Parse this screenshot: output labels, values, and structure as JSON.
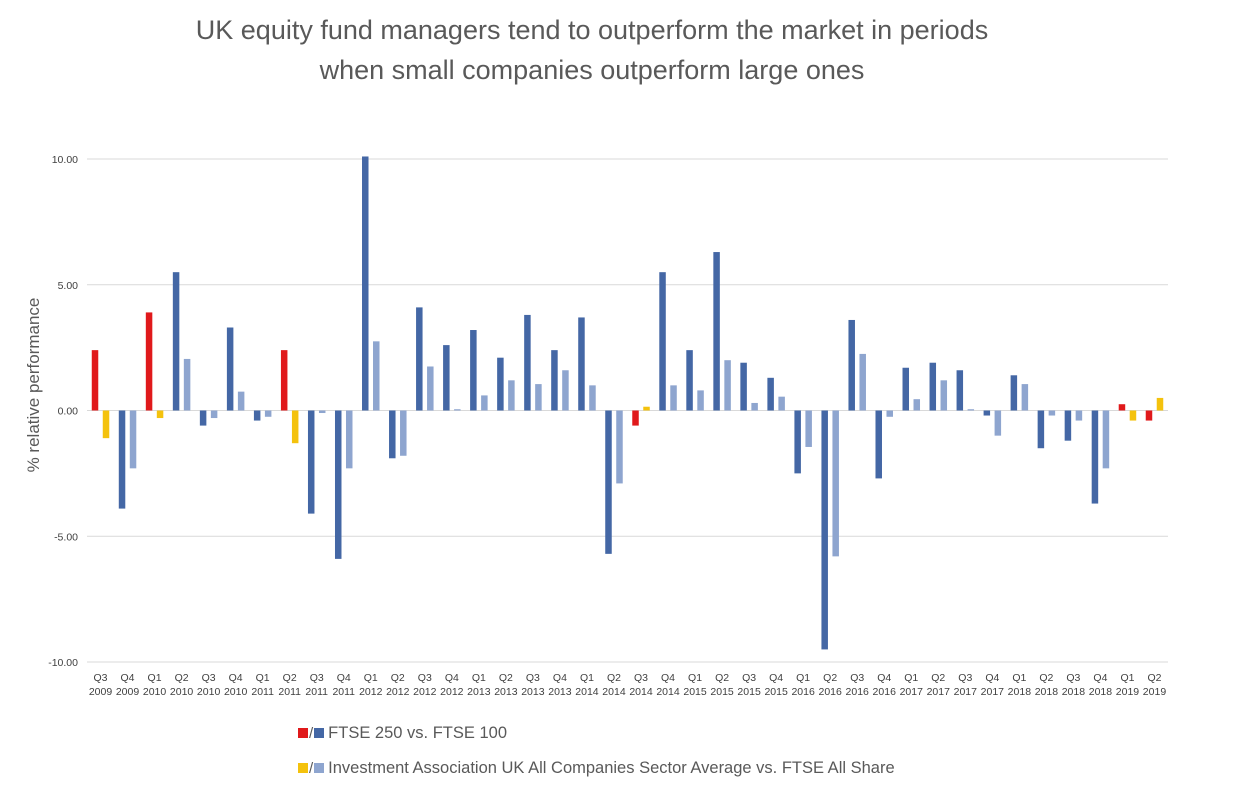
{
  "chart_data": {
    "type": "bar",
    "title": [
      "UK equity fund managers tend to outperform the market in periods",
      "when small companies outperform large ones"
    ],
    "ylabel": "% relative performance",
    "xlabel": "",
    "ylim": [
      -10,
      10
    ],
    "yticks": [
      10,
      5,
      0,
      -5,
      -10
    ],
    "ytick_labels": [
      "10.00",
      "5.00",
      "0.00",
      "-5.00",
      "-10.00"
    ],
    "grid": true,
    "legend_position": "bottom",
    "categories": [
      [
        "Q3",
        "2009"
      ],
      [
        "Q4",
        "2009"
      ],
      [
        "Q1",
        "2010"
      ],
      [
        "Q2",
        "2010"
      ],
      [
        "Q3",
        "2010"
      ],
      [
        "Q4",
        "2010"
      ],
      [
        "Q1",
        "2011"
      ],
      [
        "Q2",
        "2011"
      ],
      [
        "Q3",
        "2011"
      ],
      [
        "Q4",
        "2011"
      ],
      [
        "Q1",
        "2012"
      ],
      [
        "Q2",
        "2012"
      ],
      [
        "Q3",
        "2012"
      ],
      [
        "Q4",
        "2012"
      ],
      [
        "Q1",
        "2013"
      ],
      [
        "Q2",
        "2013"
      ],
      [
        "Q3",
        "2013"
      ],
      [
        "Q4",
        "2013"
      ],
      [
        "Q1",
        "2014"
      ],
      [
        "Q2",
        "2014"
      ],
      [
        "Q3",
        "2014"
      ],
      [
        "Q4",
        "2014"
      ],
      [
        "Q1",
        "2015"
      ],
      [
        "Q2",
        "2015"
      ],
      [
        "Q3",
        "2015"
      ],
      [
        "Q4",
        "2015"
      ],
      [
        "Q1",
        "2016"
      ],
      [
        "Q2",
        "2016"
      ],
      [
        "Q3",
        "2016"
      ],
      [
        "Q4",
        "2016"
      ],
      [
        "Q1",
        "2017"
      ],
      [
        "Q2",
        "2017"
      ],
      [
        "Q3",
        "2017"
      ],
      [
        "Q4",
        "2017"
      ],
      [
        "Q1",
        "2018"
      ],
      [
        "Q2",
        "2018"
      ],
      [
        "Q3",
        "2018"
      ],
      [
        "Q4",
        "2018"
      ],
      [
        "Q1",
        "2019"
      ],
      [
        "Q2",
        "2019"
      ]
    ],
    "series": [
      {
        "name": "FTSE 250 vs. FTSE 100",
        "colors": {
          "highlight": "#e0191b",
          "normal": "#4467a5"
        },
        "values": [
          2.4,
          -3.9,
          3.9,
          5.5,
          -0.6,
          3.3,
          -0.4,
          2.4,
          -4.1,
          -5.9,
          10.1,
          -1.9,
          4.1,
          2.6,
          3.2,
          2.1,
          3.8,
          2.4,
          3.7,
          -5.7,
          -0.6,
          5.5,
          2.4,
          6.3,
          1.9,
          1.3,
          -2.5,
          -9.5,
          3.6,
          -2.7,
          1.7,
          1.9,
          1.6,
          -0.2,
          1.4,
          -1.5,
          -1.2,
          -3.7,
          0.25,
          -0.4
        ]
      },
      {
        "name": "Investment Association UK All Companies Sector Average vs. FTSE All Share",
        "colors": {
          "highlight": "#f4c20d",
          "normal": "#8ea5cf"
        },
        "values": [
          -1.1,
          -2.3,
          -0.3,
          2.05,
          -0.3,
          0.75,
          -0.25,
          -1.3,
          -0.1,
          -2.3,
          2.75,
          -1.8,
          1.75,
          0.05,
          0.6,
          1.2,
          1.05,
          1.6,
          1.0,
          -2.9,
          0.15,
          1.0,
          0.8,
          2.0,
          0.3,
          0.55,
          -1.45,
          -5.8,
          2.25,
          -0.25,
          0.45,
          1.2,
          0.05,
          -1.0,
          1.05,
          -0.2,
          -0.4,
          -2.3,
          -0.4,
          0.5
        ]
      }
    ],
    "highlighted_categories": [
      0,
      2,
      7,
      20,
      38,
      39
    ]
  },
  "legend": {
    "slash": "/",
    "items": [
      {
        "label": "FTSE 250 vs. FTSE 100",
        "color_a": "#e0191b",
        "color_b": "#4467a5"
      },
      {
        "label": "Investment Association UK All Companies Sector Average vs. FTSE All Share",
        "color_a": "#f4c20d",
        "color_b": "#8ea5cf"
      }
    ]
  },
  "gridline_color": "#d9d9d9",
  "axis_text_color": "#404040"
}
